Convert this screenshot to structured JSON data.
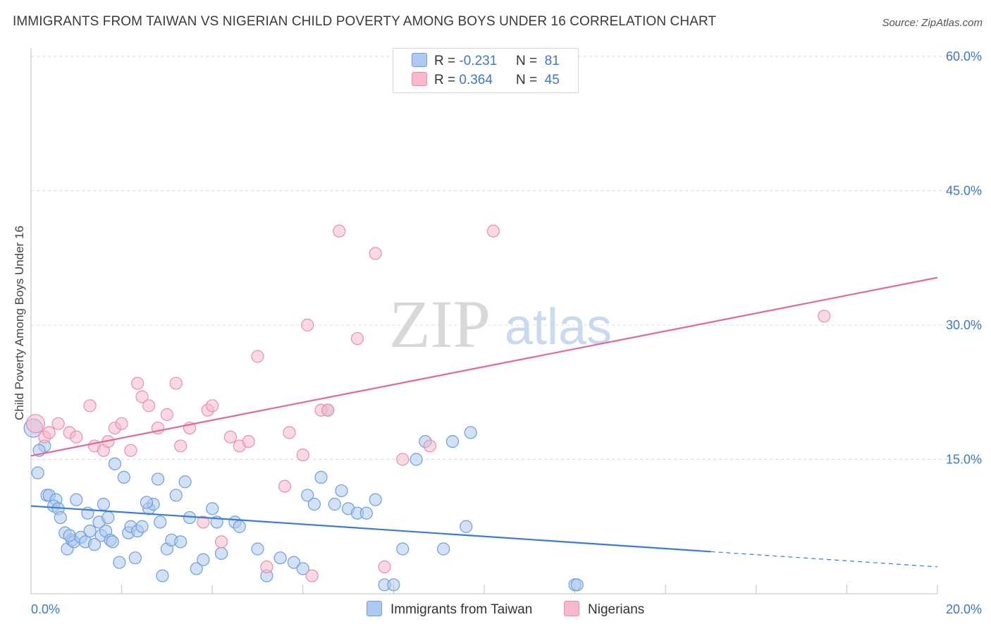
{
  "title": "IMMIGRANTS FROM TAIWAN VS NIGERIAN CHILD POVERTY AMONG BOYS UNDER 16 CORRELATION CHART",
  "source": "Source: ZipAtlas.com",
  "watermark": {
    "zip": "ZIP",
    "atlas": "atlas"
  },
  "legend": {
    "r_label": "R =",
    "n_label": "N =",
    "rows": [
      {
        "r": "-0.231",
        "n": "81",
        "color": "#aec9ef"
      },
      {
        "r": "0.364",
        "n": "45",
        "color": "#f6b9cc"
      }
    ]
  },
  "colors": {
    "taiwan_fill": "#aec9ef",
    "taiwan_stroke": "#6e9fdc",
    "taiwan_line": "#3b7ad5",
    "nigerian_fill": "#f6b9cc",
    "nigerian_stroke": "#e890ab",
    "nigerian_line": "#e06a93",
    "tick_label": "#3d78c9",
    "grid": "#dcdcdc"
  },
  "chart_data": {
    "type": "scatter",
    "title": "IMMIGRANTS FROM TAIWAN VS NIGERIAN CHILD POVERTY AMONG BOYS UNDER 16 CORRELATION CHART",
    "xlabel": "",
    "ylabel": "Child Poverty Among Boys Under 16",
    "xlim": [
      0,
      20
    ],
    "ylim": [
      0,
      60
    ],
    "x_tick_labels": [
      "0.0%",
      "20.0%"
    ],
    "y_ticks": [
      15,
      30,
      45,
      60
    ],
    "y_tick_labels": [
      "15.0%",
      "30.0%",
      "45.0%",
      "60.0%"
    ],
    "legend_position": "top-center",
    "series": [
      {
        "name": "Immigrants from Taiwan",
        "x": [
          0.05,
          0.15,
          0.3,
          0.18,
          0.35,
          0.4,
          0.55,
          0.5,
          0.6,
          0.65,
          0.75,
          0.8,
          0.9,
          0.95,
          0.85,
          1.1,
          1.0,
          1.2,
          1.3,
          1.4,
          1.5,
          1.55,
          1.65,
          1.7,
          1.75,
          1.6,
          1.8,
          1.85,
          1.95,
          2.05,
          2.15,
          2.2,
          2.3,
          2.35,
          2.45,
          2.6,
          2.7,
          2.8,
          2.85,
          2.9,
          3.0,
          3.1,
          3.2,
          3.3,
          3.4,
          3.5,
          3.65,
          3.8,
          4.0,
          4.1,
          4.2,
          4.5,
          4.6,
          5.0,
          5.2,
          5.5,
          5.8,
          6.0,
          6.1,
          6.25,
          6.4,
          6.55,
          6.7,
          6.85,
          7.0,
          7.2,
          7.4,
          7.6,
          7.8,
          8.0,
          8.2,
          8.5,
          8.7,
          9.1,
          9.3,
          9.6,
          9.7,
          12.0,
          12.05,
          2.55,
          1.25
        ],
        "y": [
          18.5,
          13.5,
          16.5,
          16.0,
          11.0,
          11.0,
          10.5,
          9.8,
          9.5,
          8.5,
          6.8,
          5.0,
          6.0,
          5.8,
          6.5,
          6.3,
          10.5,
          5.8,
          7.0,
          5.5,
          8.0,
          6.5,
          7.0,
          8.5,
          6.0,
          10.0,
          5.8,
          14.5,
          3.5,
          13.0,
          6.8,
          7.5,
          4.0,
          7.0,
          7.5,
          9.5,
          10.0,
          12.8,
          8.0,
          2.0,
          5.0,
          6.0,
          11.0,
          5.8,
          12.5,
          8.5,
          2.8,
          3.8,
          9.5,
          8.0,
          4.5,
          8.0,
          7.5,
          5.0,
          2.0,
          4.0,
          3.5,
          2.8,
          11.0,
          10.0,
          13.0,
          20.5,
          10.0,
          11.5,
          9.5,
          9.0,
          9.0,
          10.5,
          1.0,
          1.0,
          5.0,
          15.0,
          17.0,
          5.0,
          17.0,
          7.5,
          18.0,
          1.0,
          1.0,
          10.2,
          9.0
        ]
      },
      {
        "name": "Nigerians",
        "x": [
          0.1,
          0.3,
          0.4,
          0.6,
          0.85,
          1.0,
          1.3,
          1.4,
          1.6,
          1.7,
          1.85,
          2.0,
          2.2,
          2.35,
          2.45,
          2.6,
          2.8,
          3.0,
          3.2,
          3.3,
          3.5,
          3.8,
          3.9,
          4.0,
          4.2,
          4.4,
          4.6,
          4.8,
          5.0,
          5.2,
          5.6,
          5.7,
          6.0,
          6.1,
          6.2,
          6.4,
          6.55,
          6.8,
          7.2,
          7.6,
          7.8,
          8.2,
          8.8,
          10.2,
          17.5
        ],
        "y": [
          19.0,
          17.5,
          18.0,
          19.0,
          18.0,
          17.5,
          21.0,
          16.5,
          16.0,
          17.0,
          18.5,
          19.0,
          16.0,
          23.5,
          22.0,
          21.0,
          18.5,
          20.0,
          23.5,
          16.5,
          18.5,
          8.0,
          20.5,
          21.0,
          5.8,
          17.5,
          16.5,
          17.0,
          26.5,
          3.0,
          12.0,
          18.0,
          15.5,
          30.0,
          2.0,
          20.5,
          20.5,
          40.5,
          28.5,
          38.0,
          3.0,
          15.0,
          16.5,
          40.5,
          31.0
        ]
      }
    ],
    "trendlines": [
      {
        "series": "Immigrants from Taiwan",
        "x": [
          0,
          15
        ],
        "y": [
          9.8,
          4.7
        ],
        "dashed_extension_to": [
          20,
          3.0
        ]
      },
      {
        "series": "Nigerians",
        "x": [
          0,
          20
        ],
        "y": [
          15.4,
          35.3
        ]
      }
    ]
  }
}
